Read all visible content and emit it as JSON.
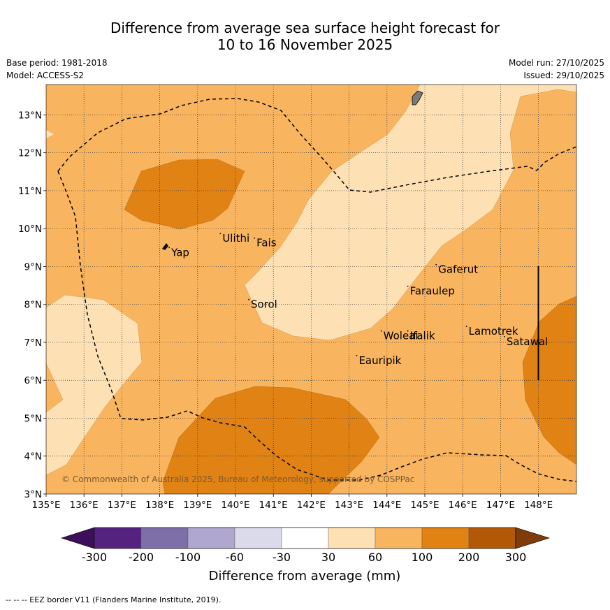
{
  "title_line1": "Difference from average sea surface height forecast for",
  "title_line2": "10 to 16 November 2025",
  "base_period": "Base period: 1981-2018",
  "model": "Model: ACCESS-S2",
  "model_run": "Model run: 27/10/2025",
  "issued": "Issued: 29/10/2025",
  "copyright": "© Commonwealth of Australia 2025, Bureau of Meteorology, supported by COSPPac",
  "footer": "--  --  -- EEZ border V11 (Flanders Marine Institute, 2019).",
  "map": {
    "lon_range": [
      135,
      149
    ],
    "lat_range": [
      3,
      13.8
    ],
    "x_ticks": [
      "135°E",
      "136°E",
      "137°E",
      "138°E",
      "139°E",
      "140°E",
      "141°E",
      "142°E",
      "143°E",
      "144°E",
      "145°E",
      "146°E",
      "147°E",
      "148°E"
    ],
    "y_ticks": [
      "3°N",
      "4°N",
      "5°N",
      "6°N",
      "7°N",
      "8°N",
      "9°N",
      "10°N",
      "11°N",
      "12°N",
      "13°N"
    ],
    "places": [
      {
        "name": "Yap",
        "lon": 138.25,
        "lat": 9.5
      },
      {
        "name": "Ulithi",
        "lon": 139.6,
        "lat": 9.87
      },
      {
        "name": "Fais",
        "lon": 140.5,
        "lat": 9.75
      },
      {
        "name": "Sorol",
        "lon": 140.35,
        "lat": 8.13
      },
      {
        "name": "Gaferut",
        "lon": 145.3,
        "lat": 9.05
      },
      {
        "name": "Faraulep",
        "lon": 144.55,
        "lat": 8.48
      },
      {
        "name": "Woleai",
        "lon": 143.85,
        "lat": 7.3
      },
      {
        "name": "Ifalik",
        "lon": 144.55,
        "lat": 7.3
      },
      {
        "name": "Lamotrek",
        "lon": 146.1,
        "lat": 7.42
      },
      {
        "name": "Satawal",
        "lon": 147.1,
        "lat": 7.15
      },
      {
        "name": "Eauripik",
        "lon": 143.2,
        "lat": 6.65
      }
    ]
  },
  "colorbar": {
    "label": "Difference from average (mm)",
    "ticks": [
      "-300",
      "-200",
      "-100",
      "-60",
      "-30",
      "30",
      "60",
      "100",
      "200",
      "300"
    ],
    "colors": [
      "#3b0f5a",
      "#542380",
      "#7e6fa8",
      "#b0a7d0",
      "#dadaeb",
      "#ffffff",
      "#fde0b3",
      "#f9b45f",
      "#e08214",
      "#b35806",
      "#7f3b08"
    ]
  }
}
